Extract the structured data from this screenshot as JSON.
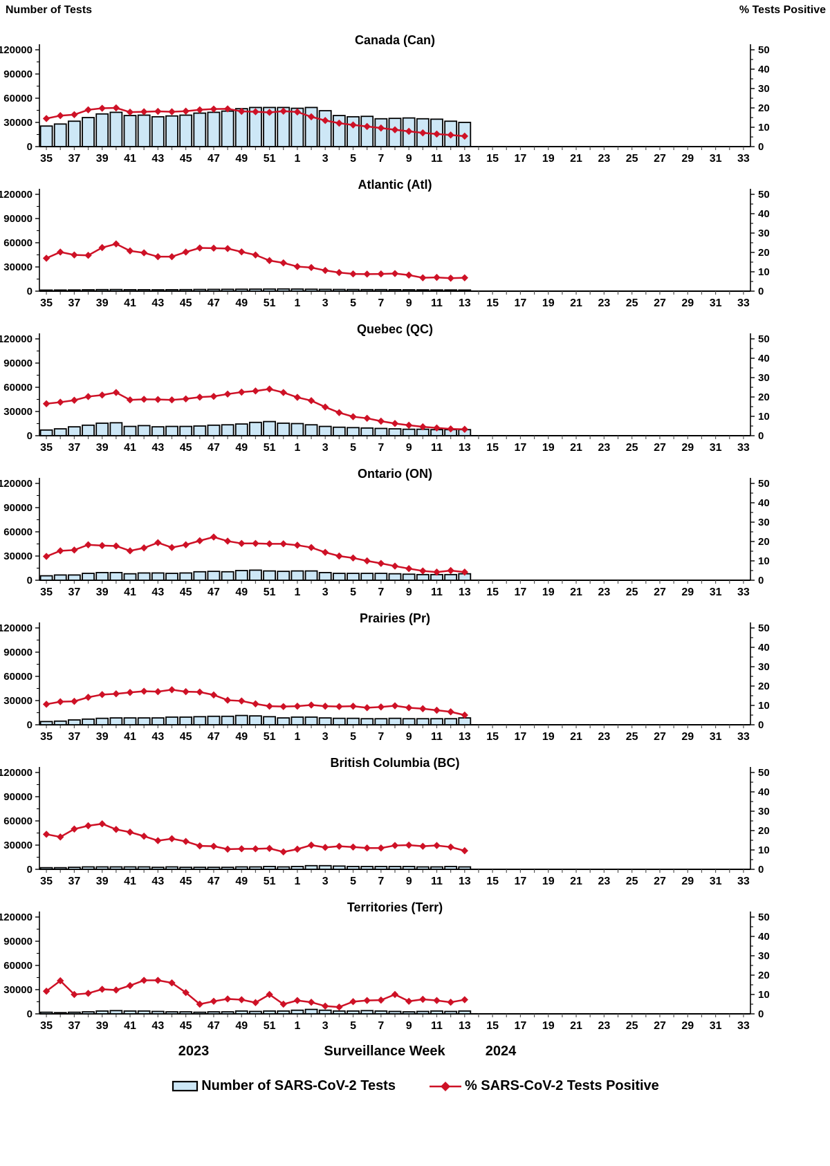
{
  "page": {
    "left_axis_header": "Number of Tests",
    "right_axis_header": "% Tests Positive",
    "footer": {
      "year_left": "2023",
      "axis_title": "Surveillance Week",
      "year_right": "2024"
    },
    "legend": {
      "bars_label": "Number of SARS-CoV-2 Tests",
      "line_label": "% SARS-CoV-2 Tests Positive"
    },
    "colors": {
      "bar_fill": "#CDE7F6",
      "bar_stroke": "#000000",
      "line": "#CE1126",
      "axis": "#000000",
      "minor_tick": "#555555"
    }
  },
  "chart_data": {
    "type": "bar+line small-multiples",
    "x_axis_note": "Surveillance weeks 35-52 of 2023 then 1-33 of 2024; labels every second week; data plotted for weeks 35 (2023) through 13 (2024)",
    "categories": [
      "35",
      "36",
      "37",
      "38",
      "39",
      "40",
      "41",
      "42",
      "43",
      "44",
      "45",
      "46",
      "47",
      "48",
      "49",
      "50",
      "51",
      "52",
      "1",
      "2",
      "3",
      "4",
      "5",
      "6",
      "7",
      "8",
      "9",
      "10",
      "11",
      "12",
      "13"
    ],
    "x_tick_labels": [
      "35",
      "37",
      "39",
      "41",
      "43",
      "45",
      "47",
      "49",
      "51",
      "1",
      "3",
      "5",
      "7",
      "9",
      "11",
      "13",
      "15",
      "17",
      "19",
      "21",
      "23",
      "25",
      "27",
      "29",
      "31",
      "33"
    ],
    "left_axis": {
      "label": "Number of Tests",
      "ticks": [
        0,
        30000,
        60000,
        90000,
        120000
      ],
      "lim": [
        0,
        120000
      ]
    },
    "right_axis": {
      "label": "% Tests Positive",
      "ticks": [
        0,
        10,
        20,
        30,
        40,
        50
      ],
      "lim": [
        0,
        50
      ]
    },
    "series_names": [
      "Number of SARS-CoV-2 Tests",
      "% SARS-CoV-2 Tests Positive"
    ],
    "panels": [
      {
        "title": "Canada (Can)",
        "tests": [
          25500,
          28000,
          31500,
          36000,
          40500,
          42500,
          38500,
          39000,
          37000,
          38000,
          39000,
          41500,
          42500,
          44000,
          47000,
          48500,
          48500,
          48500,
          47500,
          48500,
          44500,
          38500,
          37000,
          37500,
          34500,
          35000,
          35500,
          34500,
          34000,
          31500,
          30000
        ],
        "pct_positive": [
          14.5,
          16,
          16.5,
          19,
          19.8,
          20,
          17.8,
          18,
          18.2,
          18,
          18.3,
          19,
          19.4,
          19.5,
          18.2,
          18,
          17.7,
          18.3,
          17.9,
          15.4,
          13.5,
          12.1,
          11.2,
          10.4,
          9.6,
          8.7,
          7.9,
          7.1,
          6.5,
          6,
          5.4
        ]
      },
      {
        "title": "Atlantic (Atl)",
        "tests": [
          1300,
          1400,
          1500,
          1700,
          1900,
          2000,
          1800,
          1800,
          1700,
          1800,
          1900,
          2100,
          2200,
          2300,
          2400,
          2500,
          2600,
          2700,
          2600,
          2400,
          2200,
          2100,
          2000,
          1900,
          1900,
          1800,
          1700,
          1600,
          1500,
          1500,
          1400
        ],
        "pct_positive": [
          17,
          20.2,
          18.7,
          18.5,
          22.5,
          24.4,
          20.8,
          19.8,
          17.8,
          17.8,
          20.2,
          22.3,
          22.2,
          22,
          20.3,
          18.7,
          15.8,
          14.6,
          12.7,
          12.2,
          10.7,
          9.6,
          8.9,
          8.8,
          8.9,
          9.1,
          8.3,
          6.9,
          7.1,
          6.7,
          6.9
        ]
      },
      {
        "title": "Quebec (QC)",
        "tests": [
          7000,
          8500,
          11000,
          13000,
          15500,
          16000,
          11500,
          12500,
          11000,
          11500,
          11500,
          12000,
          13000,
          13500,
          14500,
          16500,
          17500,
          15500,
          15000,
          13500,
          11500,
          10500,
          10000,
          9500,
          9000,
          8500,
          8000,
          8000,
          7500,
          7500,
          7500
        ],
        "pct_positive": [
          16.5,
          17.3,
          18.3,
          20.2,
          21,
          22.3,
          18.5,
          18.8,
          18.7,
          18.5,
          19,
          19.9,
          20.3,
          21.5,
          22.5,
          23.1,
          24.1,
          22.3,
          19.8,
          18.1,
          14.8,
          11.9,
          9.8,
          9,
          7.5,
          6.3,
          5.4,
          4.6,
          4,
          3.5,
          3.3
        ]
      },
      {
        "title": "Ontario (ON)",
        "tests": [
          5500,
          6500,
          6500,
          8500,
          9500,
          9500,
          8000,
          9000,
          9000,
          8500,
          9000,
          10500,
          11000,
          10500,
          12000,
          12500,
          11500,
          11000,
          11500,
          11500,
          9500,
          8500,
          8500,
          8500,
          8500,
          8000,
          7500,
          7000,
          7000,
          7000,
          8000
        ],
        "pct_positive": [
          12.3,
          15.2,
          15.6,
          18.3,
          17.9,
          17.7,
          15.2,
          16.7,
          19.4,
          16.9,
          18.3,
          20.4,
          22.3,
          20.2,
          19,
          19,
          18.8,
          18.8,
          18.1,
          16.9,
          14.4,
          12.5,
          11.5,
          10,
          8.7,
          7.3,
          6,
          4.8,
          4.2,
          5,
          4.2
        ]
      },
      {
        "title": "Prairies (Pr)",
        "tests": [
          4000,
          4500,
          6000,
          7000,
          8000,
          8500,
          8500,
          8500,
          8500,
          9500,
          9500,
          10000,
          10500,
          10500,
          11500,
          11000,
          10000,
          8500,
          9500,
          9500,
          8500,
          8000,
          8000,
          7500,
          7500,
          8000,
          7500,
          7500,
          7500,
          7500,
          8500
        ],
        "pct_positive": [
          10.6,
          11.9,
          12.1,
          14.2,
          15.6,
          16,
          16.7,
          17.3,
          17.1,
          18.1,
          17.1,
          16.9,
          15.4,
          12.7,
          12.3,
          10.8,
          9.6,
          9.4,
          9.6,
          10.2,
          9.6,
          9.4,
          9.6,
          8.8,
          9.2,
          9.8,
          8.8,
          8.3,
          7.5,
          6.7,
          5
        ]
      },
      {
        "title": "British Columbia (BC)",
        "tests": [
          2000,
          2000,
          2500,
          3000,
          3000,
          3000,
          3000,
          3000,
          2500,
          3000,
          2500,
          2500,
          2500,
          2500,
          3000,
          3000,
          3500,
          3000,
          3500,
          4500,
          4500,
          4000,
          3500,
          3500,
          3500,
          3500,
          3500,
          3000,
          3000,
          3500,
          3000
        ],
        "pct_positive": [
          18.1,
          16.7,
          20.8,
          22.5,
          23.5,
          20.6,
          19.2,
          17.1,
          14.8,
          15.8,
          14.4,
          12.1,
          11.9,
          10.4,
          10.6,
          10.6,
          10.8,
          9,
          10.4,
          12.5,
          11.3,
          11.9,
          11.5,
          11,
          11,
          12.3,
          12.5,
          11.9,
          12.3,
          11.5,
          9.6
        ]
      },
      {
        "title": "Territories (Terr)",
        "tests": [
          2000,
          1500,
          2000,
          2500,
          3500,
          4000,
          3500,
          3500,
          3000,
          2500,
          2500,
          2000,
          2500,
          2500,
          3500,
          3000,
          3500,
          3500,
          4500,
          5500,
          4500,
          3500,
          3500,
          4000,
          3500,
          3000,
          2500,
          3000,
          3500,
          3000,
          3500
        ],
        "pct_positive": [
          11.7,
          17.1,
          10,
          10.6,
          12.7,
          12.3,
          14.6,
          17.3,
          17.3,
          16,
          11,
          5,
          6.5,
          7.7,
          7.3,
          5.8,
          10,
          5,
          6.9,
          6,
          4,
          3.5,
          6.3,
          6.9,
          7.1,
          10,
          6.5,
          7.5,
          6.9,
          6,
          7.3
        ]
      }
    ]
  }
}
